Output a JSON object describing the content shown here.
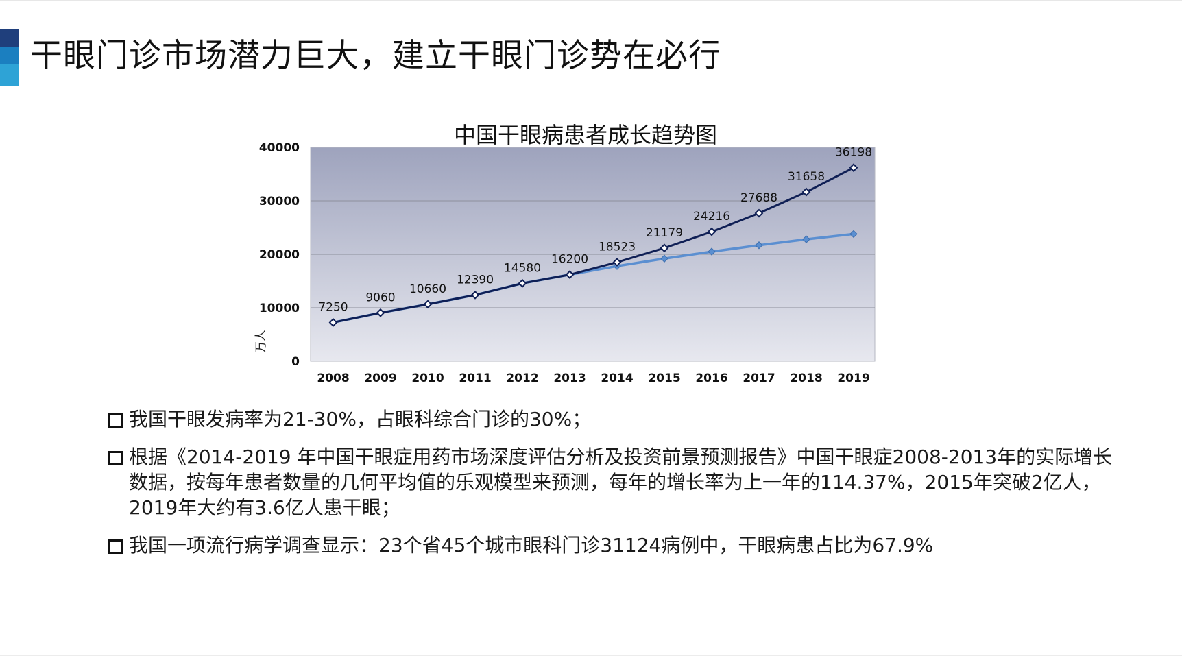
{
  "slide": {
    "title": "干眼门诊市场潜力巨大，建立干眼门诊势在必行",
    "accent_colors": [
      "#1f3f7c",
      "#1b7fc0",
      "#2ea3d6"
    ]
  },
  "chart_data": {
    "type": "line",
    "title": "中国干眼病患者成长趋势图",
    "ylabel": "万人",
    "xlabel": "",
    "ylim": [
      0,
      40000
    ],
    "yticks": [
      "0",
      "10000",
      "20000",
      "30000",
      "40000"
    ],
    "categories": [
      "2008",
      "2009",
      "2010",
      "2011",
      "2012",
      "2013",
      "2014",
      "2015",
      "2016",
      "2017",
      "2018",
      "2019"
    ],
    "grid": true,
    "series": [
      {
        "color": "#0f1f55",
        "marker": "hollow-diamond",
        "labeled": true,
        "values": [
          7250,
          9060,
          10660,
          12390,
          14580,
          16200,
          18523,
          21179,
          24216,
          27688,
          31658,
          36198
        ]
      },
      {
        "color": "#5b8fd1",
        "marker": "filled-diamond",
        "labeled": false,
        "values": [
          7250,
          9060,
          10660,
          12390,
          14580,
          16200,
          17800,
          19200,
          20500,
          21700,
          22800,
          23800
        ]
      }
    ],
    "data_labels": [
      "7250",
      "9060",
      "10660",
      "12390",
      "14580",
      "16200",
      "18523",
      "21179",
      "24216",
      "27688",
      "31658",
      "36198"
    ],
    "plot_background": "gradient #9ea3bd to #e6e7ee"
  },
  "bullets": [
    "我国干眼发病率为21-30%，占眼科综合门诊的30%；",
    "根据《2014-2019 年中国干眼症用药市场深度评估分析及投资前景预测报告》中国干眼症2008-2013年的实际增长数据，按每年患者数量的几何平均值的乐观模型来预测，每年的增长率为上一年的114.37%，2015年突破2亿人，2019年大约有3.6亿人患干眼；",
    "我国一项流行病学调查显示：23个省45个城市眼科门诊31124病例中，干眼病患占比为67.9%"
  ]
}
